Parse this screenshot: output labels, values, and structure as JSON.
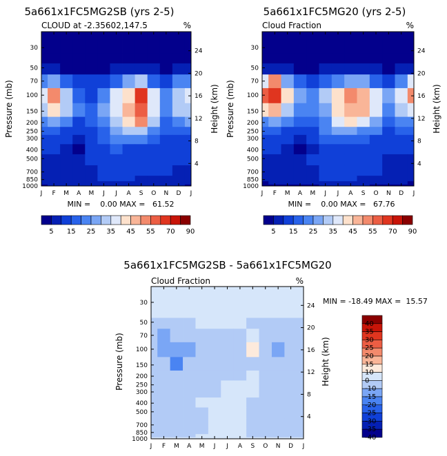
{
  "chart_data": [
    {
      "type": "heatmap",
      "title": "5a661x1FC5MG2SB (yrs 2-5)",
      "subtitle": "CLOUD at -2.35602,147.5",
      "units": "%",
      "ylabel": "Pressure (mb)",
      "ylabel_right": "Height (km)",
      "x_ticks": [
        "J",
        "F",
        "M",
        "A",
        "M",
        "J",
        "J",
        "A",
        "S",
        "O",
        "N",
        "D",
        "J"
      ],
      "y_ticks": [
        "30",
        "50",
        "70",
        "100",
        "150",
        "200",
        "250",
        "300",
        "400",
        "500",
        "700",
        "850",
        "1000"
      ],
      "y_ticks_right": [
        "24",
        "20",
        "16",
        "12",
        "8",
        "4"
      ],
      "ylim": [
        1000,
        20
      ],
      "stats": "MIN =    0.00 MAX =   61.52",
      "min": 0.0,
      "max": 61.52,
      "colorbar_labels": [
        "5",
        "15",
        "25",
        "35",
        "45",
        "55",
        "70",
        "90"
      ],
      "grid_values": [
        [
          2,
          2,
          2,
          2,
          2,
          2,
          2,
          2,
          2,
          2,
          2,
          2,
          2
        ],
        [
          2,
          2,
          2,
          2,
          2,
          2,
          2,
          2,
          2,
          2,
          2,
          2,
          2
        ],
        [
          3,
          3,
          3,
          3,
          3,
          3,
          3,
          3,
          3,
          3,
          3,
          3,
          3
        ],
        [
          5,
          7,
          4,
          3,
          3,
          4,
          6,
          6,
          6,
          5,
          4,
          5,
          5
        ],
        [
          24,
          25,
          15,
          10,
          10,
          14,
          18,
          25,
          32,
          18,
          12,
          20,
          24
        ],
        [
          38,
          52,
          32,
          18,
          14,
          22,
          38,
          44,
          60,
          38,
          20,
          30,
          38
        ],
        [
          30,
          40,
          30,
          20,
          18,
          25,
          35,
          48,
          58,
          36,
          20,
          30,
          32
        ],
        [
          22,
          26,
          20,
          14,
          16,
          22,
          32,
          42,
          52,
          30,
          18,
          24,
          25
        ],
        [
          17,
          18,
          14,
          10,
          13,
          18,
          26,
          32,
          34,
          24,
          16,
          18,
          18
        ],
        [
          12,
          12,
          10,
          7,
          12,
          16,
          20,
          22,
          22,
          18,
          14,
          14,
          14
        ],
        [
          14,
          12,
          8,
          2,
          10,
          14,
          16,
          14,
          14,
          14,
          12,
          12,
          12
        ],
        [
          8,
          8,
          8,
          8,
          10,
          12,
          14,
          13,
          12,
          12,
          10,
          10,
          10
        ],
        [
          6,
          8,
          8,
          8,
          9,
          12,
          14,
          12,
          10,
          10,
          10,
          9,
          8
        ],
        [
          6,
          7,
          8,
          8,
          8,
          10,
          12,
          11,
          9,
          8,
          8,
          7,
          6
        ],
        [
          5,
          6,
          7,
          7,
          7,
          8,
          9,
          8,
          7,
          7,
          7,
          6,
          5
        ],
        [
          4,
          5,
          5,
          5,
          5,
          6,
          6,
          6,
          5,
          5,
          5,
          5,
          4
        ]
      ]
    },
    {
      "type": "heatmap",
      "title": "5a661x1FC5MG20 (yrs 2-5)",
      "subtitle": "Cloud Fraction",
      "units": "%",
      "ylabel": "Pressure (mb)",
      "ylabel_right": "Height (km)",
      "x_ticks": [
        "J",
        "F",
        "M",
        "A",
        "M",
        "J",
        "J",
        "A",
        "S",
        "O",
        "N",
        "D",
        "J"
      ],
      "y_ticks": [
        "30",
        "50",
        "70",
        "100",
        "150",
        "200",
        "250",
        "300",
        "400",
        "500",
        "700",
        "850",
        "1000"
      ],
      "y_ticks_right": [
        "24",
        "20",
        "16",
        "12",
        "8",
        "4"
      ],
      "ylim": [
        1000,
        20
      ],
      "stats": "MIN =    0.00 MAX =   67.76",
      "min": 0.0,
      "max": 67.76,
      "colorbar_labels": [
        "5",
        "15",
        "25",
        "35",
        "45",
        "55",
        "70",
        "90"
      ],
      "grid_values": [
        [
          2,
          2,
          2,
          2,
          2,
          2,
          2,
          2,
          2,
          2,
          2,
          2,
          2
        ],
        [
          2,
          2,
          2,
          2,
          2,
          2,
          2,
          2,
          2,
          2,
          2,
          2,
          2
        ],
        [
          3,
          3,
          3,
          3,
          3,
          3,
          3,
          3,
          3,
          3,
          3,
          3,
          3
        ],
        [
          6,
          8,
          5,
          4,
          3,
          5,
          6,
          6,
          6,
          5,
          4,
          6,
          6
        ],
        [
          38,
          52,
          28,
          16,
          14,
          18,
          24,
          28,
          25,
          18,
          14,
          24,
          38
        ],
        [
          55,
          66,
          40,
          28,
          22,
          30,
          42,
          50,
          46,
          38,
          28,
          38,
          52
        ],
        [
          40,
          48,
          30,
          22,
          20,
          28,
          40,
          48,
          45,
          35,
          24,
          30,
          38
        ],
        [
          24,
          28,
          22,
          16,
          16,
          24,
          36,
          40,
          36,
          28,
          18,
          22,
          24
        ],
        [
          16,
          18,
          14,
          10,
          12,
          20,
          26,
          28,
          24,
          20,
          14,
          16,
          16
        ],
        [
          12,
          12,
          10,
          6,
          10,
          16,
          18,
          18,
          16,
          14,
          12,
          12,
          12
        ],
        [
          12,
          12,
          8,
          4,
          8,
          12,
          14,
          14,
          12,
          12,
          10,
          10,
          12
        ],
        [
          8,
          9,
          8,
          8,
          10,
          12,
          12,
          12,
          11,
          10,
          9,
          9,
          8
        ],
        [
          6,
          8,
          8,
          8,
          9,
          12,
          12,
          12,
          10,
          10,
          9,
          8,
          6
        ],
        [
          5,
          7,
          8,
          8,
          8,
          10,
          12,
          10,
          9,
          8,
          8,
          7,
          5
        ],
        [
          4,
          5,
          6,
          6,
          6,
          7,
          8,
          8,
          7,
          7,
          6,
          5,
          4
        ],
        [
          3,
          4,
          4,
          4,
          4,
          5,
          5,
          5,
          5,
          4,
          4,
          4,
          3
        ]
      ]
    },
    {
      "type": "heatmap",
      "title": "5a661x1FC5MG2SB - 5a661x1FC5MG20",
      "subtitle": "Cloud Fraction",
      "units": "%",
      "ylabel": "Pressure (mb)",
      "ylabel_right": "Height (km)",
      "x_ticks": [
        "J",
        "F",
        "M",
        "A",
        "M",
        "J",
        "J",
        "A",
        "S",
        "O",
        "N",
        "D",
        "J"
      ],
      "y_ticks": [
        "30",
        "50",
        "70",
        "100",
        "150",
        "200",
        "250",
        "300",
        "400",
        "500",
        "700",
        "850",
        "1000"
      ],
      "y_ticks_right": [
        "24",
        "20",
        "16",
        "12",
        "8",
        "4"
      ],
      "ylim": [
        1000,
        20
      ],
      "stats": "MIN = -18.49 MAX =  15.57",
      "min": -18.49,
      "max": 15.57,
      "colorbar_labels": [
        "40",
        "35",
        "30",
        "25",
        "20",
        "15",
        "10",
        "0",
        "-10",
        "-15",
        "-20",
        "-25",
        "-30",
        "-35",
        "-40"
      ],
      "grid_values": [
        [
          1,
          1,
          1,
          1,
          1,
          1,
          1,
          1,
          1,
          1,
          1,
          1,
          1
        ],
        [
          1,
          1,
          1,
          1,
          1,
          1,
          1,
          1,
          1,
          1,
          1,
          1,
          1
        ],
        [
          1,
          1,
          1,
          1,
          1,
          1,
          1,
          1,
          1,
          1,
          1,
          1,
          1
        ],
        [
          -2,
          -2,
          -3,
          -2,
          1,
          1,
          1,
          1,
          -2,
          -3,
          -2,
          -1,
          -1
        ],
        [
          -8,
          -12,
          -5,
          -6,
          -2,
          -3,
          -2,
          -1,
          8,
          -2,
          -4,
          -2,
          -3
        ],
        [
          -10,
          -14,
          -12,
          -15,
          -6,
          -3,
          -2,
          -3,
          12,
          -4,
          -12,
          -4,
          -6
        ],
        [
          -9,
          -8,
          -16,
          -5,
          -4,
          -3,
          -2,
          -4,
          -2,
          -3,
          -6,
          -2,
          -5
        ],
        [
          -5,
          -6,
          -10,
          -5,
          -3,
          -2,
          -3,
          -2,
          1,
          -2,
          -4,
          -2,
          -3
        ],
        [
          -3,
          -4,
          -6,
          -7,
          -3,
          -2,
          1,
          1,
          2,
          -2,
          -3,
          -2,
          -2
        ],
        [
          -2,
          -3,
          -5,
          -6,
          -2,
          -1,
          1,
          2,
          2,
          -2,
          -2,
          -2,
          -2
        ],
        [
          -2,
          -2,
          -6,
          -4,
          2,
          3,
          1,
          2,
          -2,
          -2,
          -2,
          -2,
          -2
        ],
        [
          -2,
          -2,
          -2,
          -2,
          -1,
          1,
          2,
          1,
          -1,
          -2,
          -2,
          -2,
          -2
        ],
        [
          -2,
          -2,
          -2,
          -2,
          -1,
          1,
          2,
          1,
          -1,
          -2,
          -2,
          -2,
          -2
        ],
        [
          -2,
          -2,
          -2,
          -2,
          -1,
          1,
          2,
          1,
          -1,
          -2,
          -2,
          -2,
          -2
        ],
        [
          -1,
          -1,
          -1,
          -1,
          1,
          2,
          2,
          1,
          -1,
          -1,
          -1,
          -1,
          -1
        ],
        [
          1,
          1,
          1,
          1,
          1,
          1,
          1,
          1,
          1,
          1,
          1,
          1,
          1
        ]
      ]
    }
  ],
  "colors": {
    "seq": [
      "#03008c",
      "#0520b4",
      "#1040d8",
      "#2862ea",
      "#4a84f2",
      "#7aa6f5",
      "#b2cbf6",
      "#dfe8fa",
      "#fde1cc",
      "#f9b598",
      "#f38a6c",
      "#ec5e44",
      "#e0351f",
      "#c81408",
      "#8a0000"
    ],
    "diff": [
      "#03008c",
      "#0520b4",
      "#1040d8",
      "#2862ea",
      "#4a84f2",
      "#7aa6f5",
      "#b2cbf6",
      "#d6e6fa",
      "#fdeadc",
      "#f9b598",
      "#f38a6c",
      "#ec5e44",
      "#e0351f",
      "#c81408",
      "#8a0000"
    ]
  }
}
